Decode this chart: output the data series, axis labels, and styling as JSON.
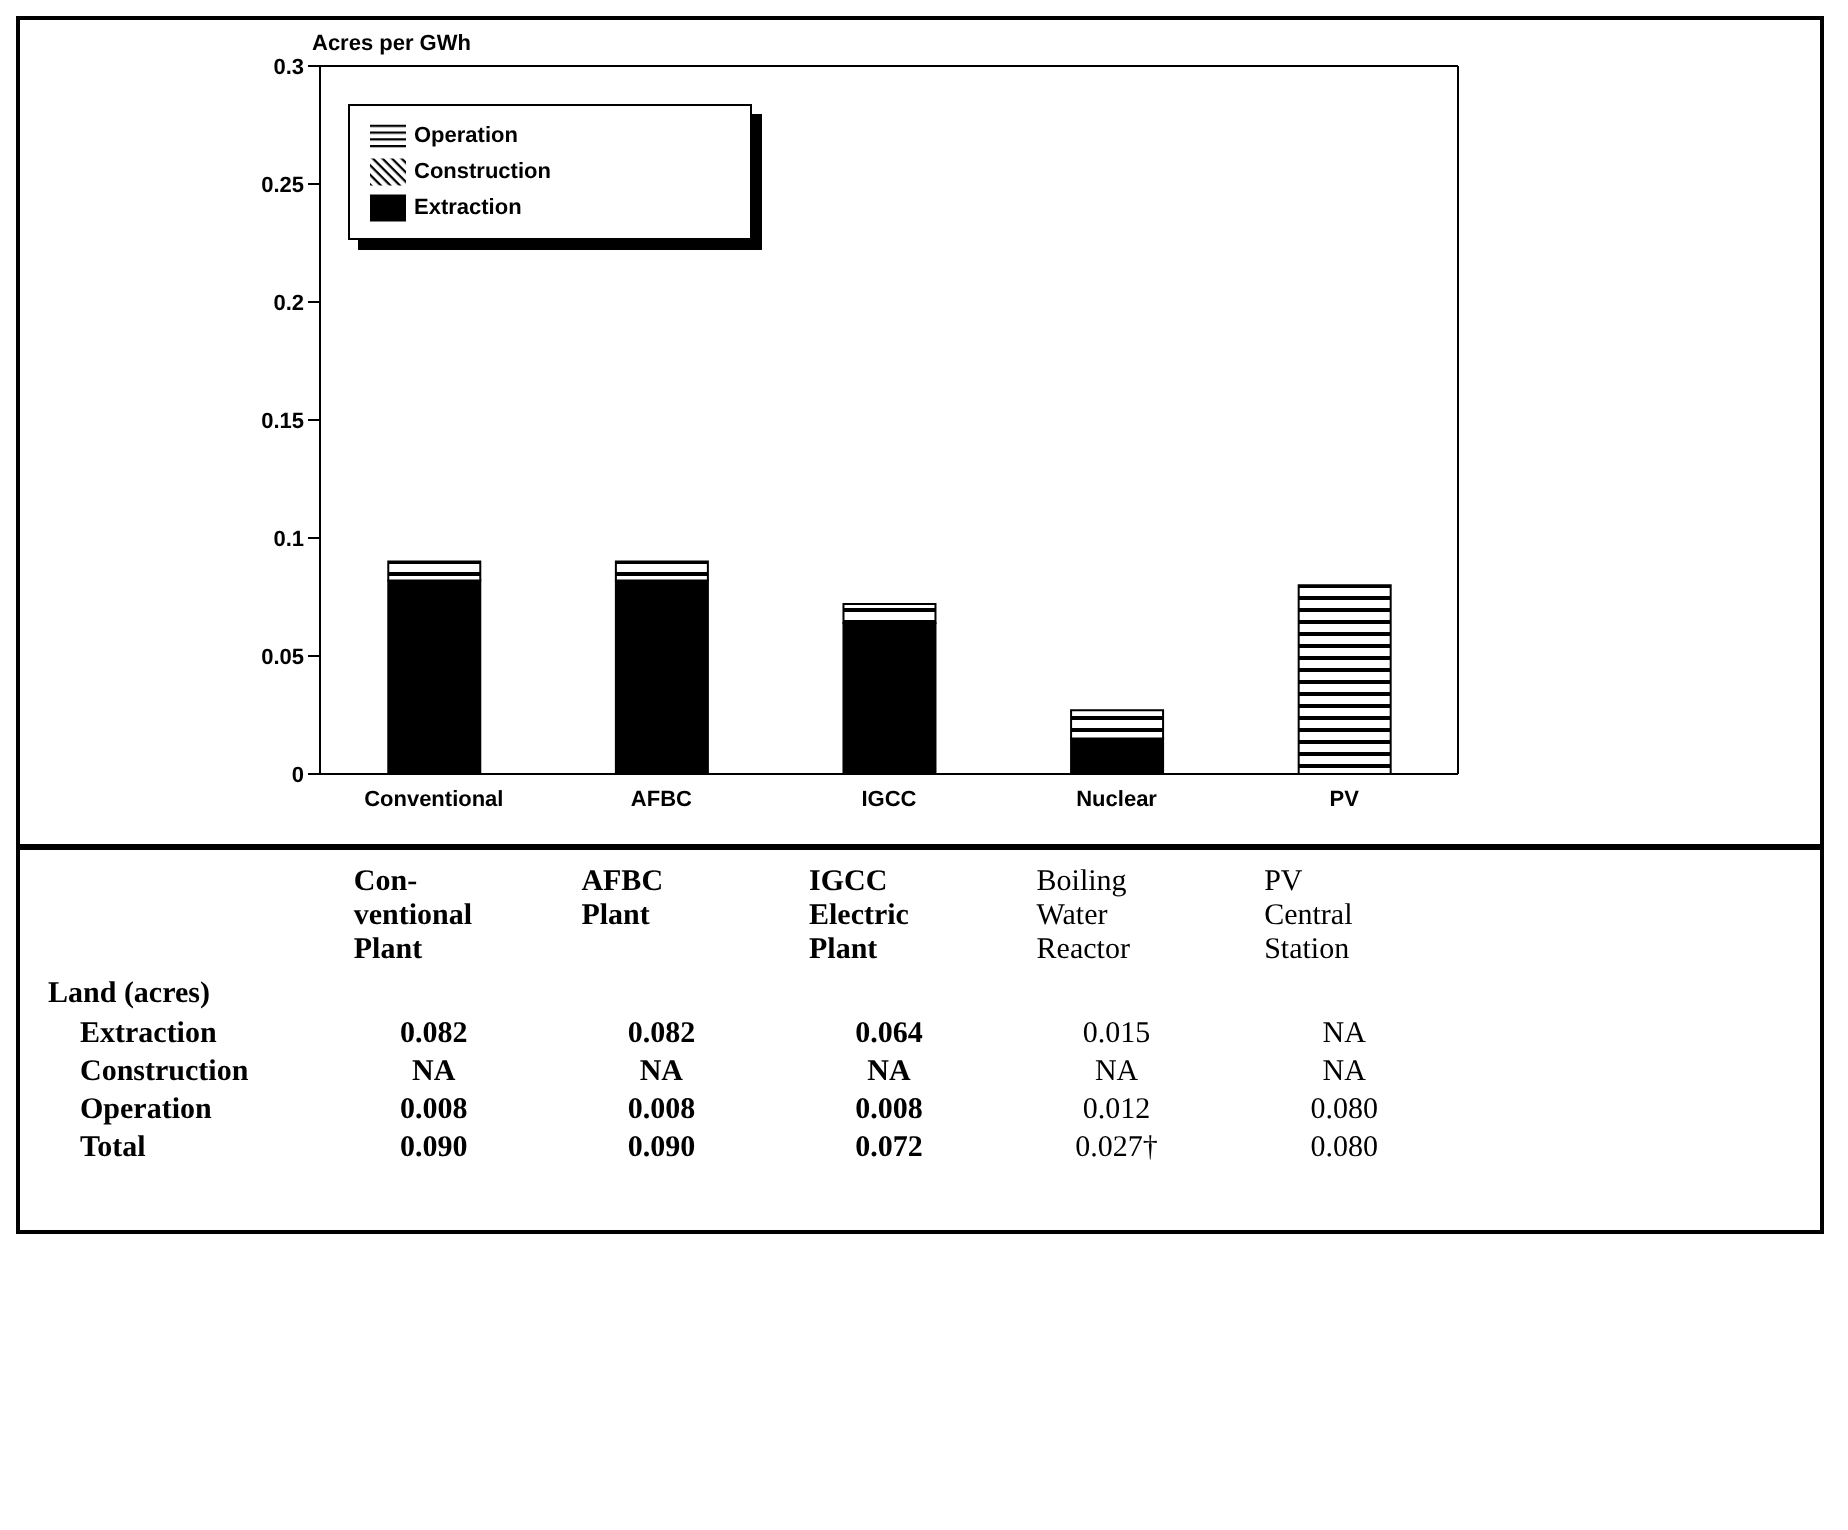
{
  "chart_data": [
    {
      "type": "bar",
      "stacked": true,
      "ylabel": "Acres per GWh",
      "categories": [
        "Conventional",
        "AFBC",
        "IGCC",
        "Nuclear",
        "PV"
      ],
      "series": [
        {
          "name": "Extraction",
          "color": "#000000",
          "values": [
            0.082,
            0.082,
            0.064,
            0.015,
            null
          ]
        },
        {
          "name": "Construction",
          "color": "#000000",
          "values": [
            null,
            null,
            null,
            null,
            null
          ]
        },
        {
          "name": "Operation",
          "color": "#000000",
          "values": [
            0.008,
            0.008,
            0.008,
            0.012,
            0.08
          ]
        }
      ],
      "ylim": [
        0,
        0.3
      ],
      "yticks": [
        0,
        0.05,
        0.1,
        0.15,
        0.2,
        0.25,
        0.3
      ],
      "legend": "top left",
      "grid": false
    },
    {
      "type": "other",
      "categories": [
        "Con-\nventional\nPlant",
        "AFBC\nPlant",
        "IGCC\nElectric\nPlant",
        "Boiling\nWater\nReactor",
        "PV\nCentral\nStation"
      ],
      "annotations": [
        "Land (acres)",
        "Extraction",
        "0.082",
        "0.082",
        "0.064",
        "0.015",
        "NA",
        "Construction",
        "NA",
        "NA",
        "NA",
        "NA",
        "NA",
        "Operation",
        "0.008",
        "0.008",
        "0.008",
        "0.012",
        "0.080",
        "Total",
        "0.090",
        "0.090",
        "0.072",
        "0.027†",
        "0.080"
      ]
    }
  ]
}
